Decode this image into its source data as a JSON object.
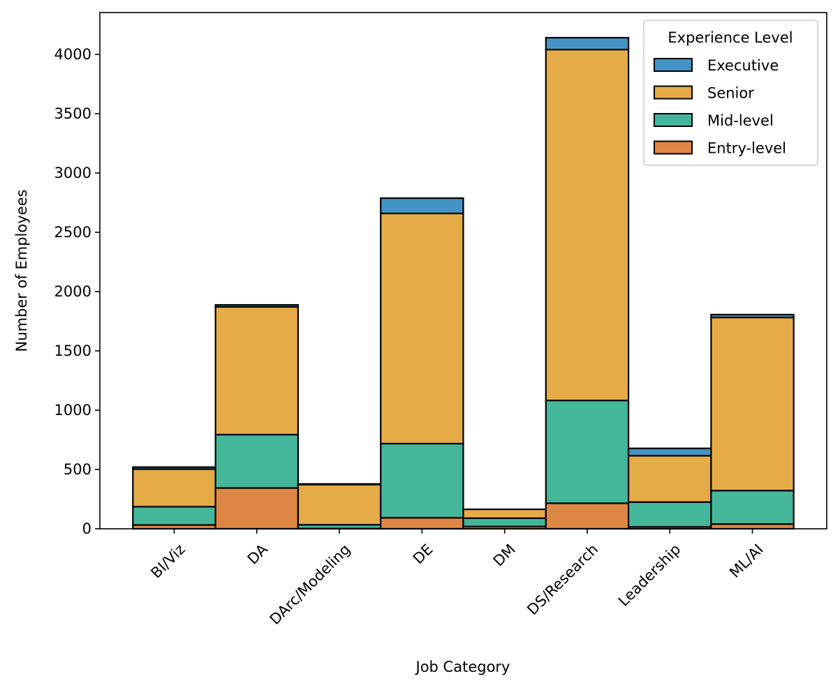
{
  "chart_data": {
    "type": "bar",
    "stacked": true,
    "title": "",
    "xlabel": "Job Category",
    "ylabel": "Number of Employees",
    "categories": [
      "BI/Viz",
      "DA",
      "DArc/Modeling",
      "DE",
      "DM",
      "DS/Research",
      "Leadership",
      "ML/AI"
    ],
    "ylim": [
      0,
      4353
    ],
    "xlim": [
      -0.9,
      7.9
    ],
    "yticks": [
      0,
      500,
      1000,
      1500,
      2000,
      2500,
      3000,
      3500,
      4000
    ],
    "grid": false,
    "legend": {
      "title": "Experience Level",
      "placement": "top-right"
    },
    "series": [
      {
        "name": "Entry-level",
        "color": "#de8644",
        "values": [
          32,
          344,
          2,
          93,
          19,
          215,
          16,
          40
        ]
      },
      {
        "name": "Mid-level",
        "color": "#44b699",
        "values": [
          154,
          450,
          32,
          625,
          70,
          867,
          209,
          282
        ]
      },
      {
        "name": "Senior",
        "color": "#e5ab47",
        "values": [
          317,
          1077,
          339,
          1941,
          75,
          2959,
          391,
          1460
        ]
      },
      {
        "name": "Executive",
        "color": "#4394c4",
        "values": [
          17,
          17,
          5,
          129,
          0,
          100,
          62,
          24
        ]
      }
    ],
    "legend_order": [
      "Executive",
      "Senior",
      "Mid-level",
      "Entry-level"
    ]
  }
}
